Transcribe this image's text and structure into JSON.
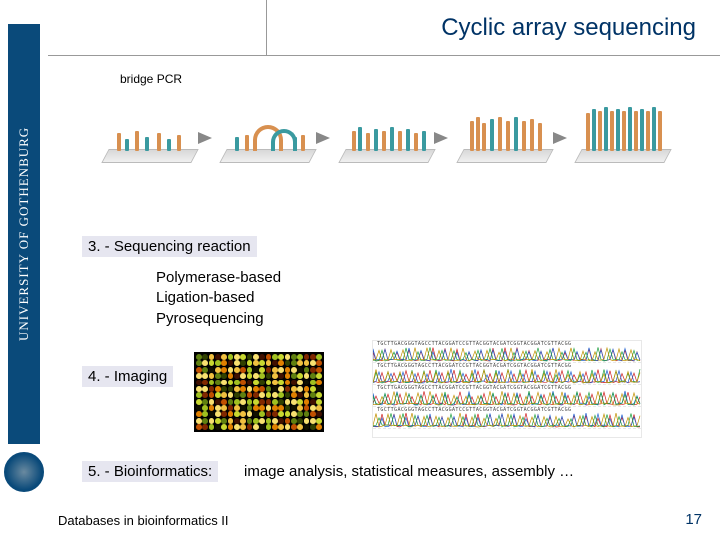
{
  "sidebar": {
    "institution": "UNIVERSITY OF GOTHENBURG"
  },
  "header": {
    "title": "Cyclic array sequencing"
  },
  "bridge": {
    "label": "bridge PCR"
  },
  "step3": {
    "heading": "3. - Sequencing reaction",
    "method1": "Polymerase-based",
    "method2": "Ligation-based",
    "method3": "Pyrosequencing"
  },
  "step4": {
    "heading": "4. - Imaging"
  },
  "step5": {
    "heading": "5. - Bioinformatics:",
    "text": "image analysis, statistical measures, assembly …"
  },
  "footer": {
    "course": "Databases in bioinformatics II",
    "page": "17"
  },
  "style": {
    "title_color": "#003366",
    "highlight_bg": "#e6e6f0",
    "strand_orange": "#d89050",
    "strand_teal": "#3a9aa0",
    "arrow_color": "#888888",
    "trace_colors": [
      "#d02020",
      "#2060d0",
      "#20a040",
      "#c09000"
    ],
    "spot_palette": [
      "#401000",
      "#802800",
      "#c05000",
      "#e08000",
      "#f0c040",
      "#f8e070",
      "#c8d830",
      "#a0c020",
      "#608010",
      "#304000",
      "#101000"
    ]
  },
  "traces": {
    "rows": 4,
    "base_seq": "TGCTTGACGGGTAGCCTTACGGATCCGTTACGGTACGATCGGTACGGATCGTTACGG"
  }
}
